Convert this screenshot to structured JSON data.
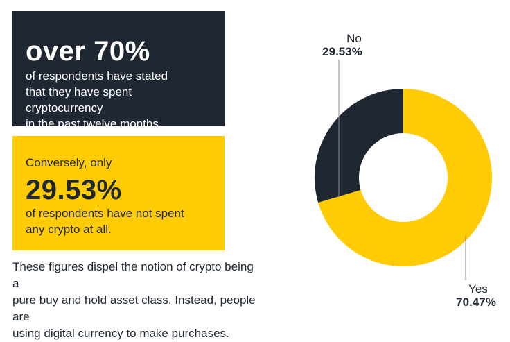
{
  "cards": {
    "dark": {
      "headline": "over 70%",
      "lines": [
        "of respondents have stated",
        "that they have spent cryptocurrency",
        "in the past twelve months."
      ]
    },
    "yellow": {
      "lead": "Conversely, only",
      "headline": "29.53%",
      "lines": [
        "of respondents have not spent",
        "any crypto at all."
      ]
    }
  },
  "footnote": {
    "lines": [
      "These figures dispel the notion of crypto being a",
      "pure buy and hold asset class. Instead, people are",
      "using digital currency to make purchases."
    ]
  },
  "colors": {
    "dark": "#1f2832",
    "yellow": "#ffcb05",
    "leader": "#8a8f96"
  },
  "chart_data": {
    "type": "pie",
    "donut": true,
    "categories": [
      "Yes",
      "No"
    ],
    "values": [
      70.47,
      29.53
    ],
    "value_labels": [
      "70.47%",
      "29.53%"
    ],
    "colors": [
      "#ffcb05",
      "#1f2832"
    ]
  }
}
